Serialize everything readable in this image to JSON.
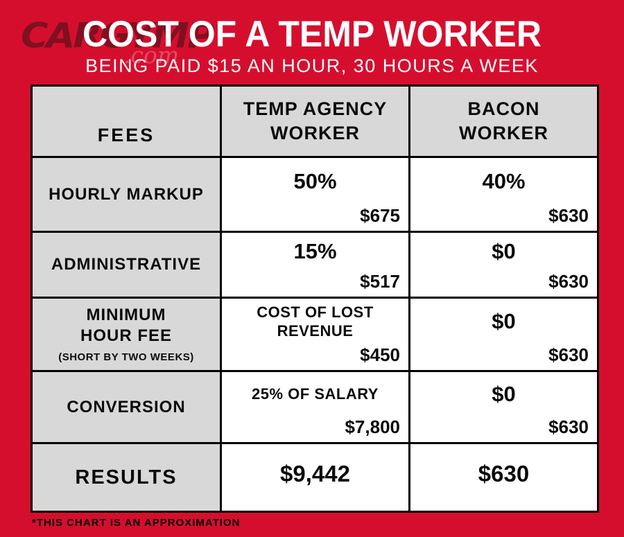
{
  "colors": {
    "background_red": "#d60e2e",
    "cell_gray": "#d8d8d8",
    "cell_white": "#ffffff",
    "border_black": "#000000",
    "watermark_maroon": "#7c1120",
    "title_white": "#ffffff"
  },
  "watermark": {
    "brand": "CARGYMP",
    "suffix": ".com"
  },
  "chart_data": {
    "type": "table",
    "title": "COST OF A TEMP WORKER",
    "subtitle": "BEING PAID $15 AN HOUR, 30 HOURS A WEEK",
    "columns": [
      "FEES",
      "TEMP AGENCY WORKER",
      "BACON WORKER"
    ],
    "rows": [
      {
        "fee": "HOURLY MARKUP",
        "fee_note": "",
        "temp_value": "50%",
        "temp_total": "$675",
        "bacon_value": "40%",
        "bacon_total": "$630"
      },
      {
        "fee": "ADMINISTRATIVE",
        "fee_note": "",
        "temp_value": "15%",
        "temp_total": "$517",
        "bacon_value": "$0",
        "bacon_total": "$630"
      },
      {
        "fee": "MINIMUM HOUR FEE",
        "fee_note": "(SHORT BY TWO WEEKS)",
        "temp_value": "COST OF LOST REVENUE",
        "temp_total": "$450",
        "bacon_value": "$0",
        "bacon_total": "$630"
      },
      {
        "fee": "CONVERSION",
        "fee_note": "",
        "temp_value": "25% OF SALARY",
        "temp_total": "$7,800",
        "bacon_value": "$0",
        "bacon_total": "$630"
      }
    ],
    "results": {
      "label": "RESULTS",
      "temp_total": "$9,442",
      "bacon_total": "$630"
    },
    "note": "*THIS CHART IS AN APPROXIMATION",
    "layout": {
      "legend": "none",
      "grid": "table-borders"
    }
  }
}
